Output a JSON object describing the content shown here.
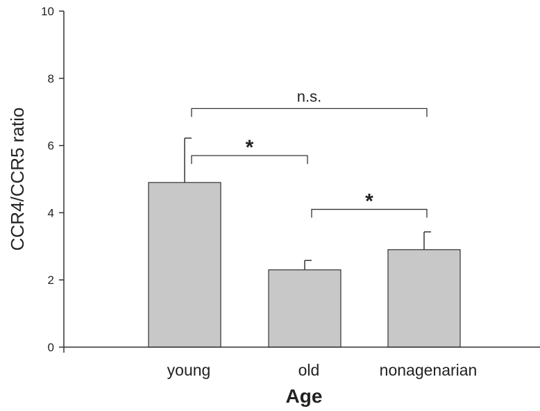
{
  "chart_data": {
    "type": "bar",
    "categories": [
      "young",
      "old",
      "nonagenarian"
    ],
    "values": [
      4.9,
      2.3,
      2.9
    ],
    "error_upper": [
      6.22,
      2.58,
      3.43
    ],
    "xlabel": "Age",
    "ylabel": "CCR4/CCR5 ratio",
    "ylim": [
      0,
      10
    ],
    "yticks": [
      0,
      2,
      4,
      6,
      8,
      10
    ],
    "ytick_labels": [
      "0",
      "2",
      "4",
      "6",
      "8",
      "10"
    ],
    "grid": false,
    "bar_color": "#c8c8c8",
    "edge_color": "#333333",
    "significance": [
      {
        "from": 0,
        "to": 2,
        "label": "n.s.",
        "y": 7.1
      },
      {
        "from": 0,
        "to": 1,
        "label": "*",
        "y": 5.7
      },
      {
        "from": 1,
        "to": 2,
        "label": "*",
        "y": 4.1
      }
    ]
  }
}
